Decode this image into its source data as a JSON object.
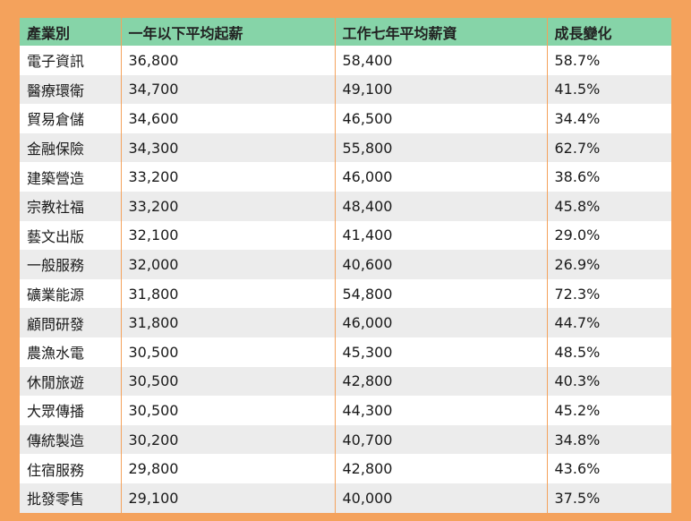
{
  "table": {
    "headers": [
      "產業別",
      "一年以下平均起薪",
      "工作七年平均薪資",
      "成長變化"
    ],
    "rows": [
      [
        "電子資訊",
        "36,800",
        "58,400",
        "58.7%"
      ],
      [
        "醫療環衛",
        "34,700",
        "49,100",
        "41.5%"
      ],
      [
        "貿易倉儲",
        "34,600",
        "46,500",
        "34.4%"
      ],
      [
        "金融保險",
        "34,300",
        "55,800",
        "62.7%"
      ],
      [
        "建築營造",
        "33,200",
        "46,000",
        "38.6%"
      ],
      [
        "宗教社福",
        "33,200",
        "48,400",
        "45.8%"
      ],
      [
        "藝文出版",
        "32,100",
        "41,400",
        "29.0%"
      ],
      [
        "一般服務",
        "32,000",
        "40,600",
        "26.9%"
      ],
      [
        "礦業能源",
        "31,800",
        "54,800",
        "72.3%"
      ],
      [
        "顧問研發",
        "31,800",
        "46,000",
        "44.7%"
      ],
      [
        "農漁水電",
        "30,500",
        "45,300",
        "48.5%"
      ],
      [
        "休閒旅遊",
        "30,500",
        "42,800",
        "40.3%"
      ],
      [
        "大眾傳播",
        "30,500",
        "44,300",
        "45.2%"
      ],
      [
        "傳統製造",
        "30,200",
        "40,700",
        "34.8%"
      ],
      [
        "住宿服務",
        "29,800",
        "42,800",
        "43.6%"
      ],
      [
        "批發零售",
        "29,100",
        "40,000",
        "37.5%"
      ]
    ]
  },
  "colors": {
    "border": "#f4a25c",
    "header_bg": "#86d4a8",
    "stripe_bg": "#ececec"
  }
}
